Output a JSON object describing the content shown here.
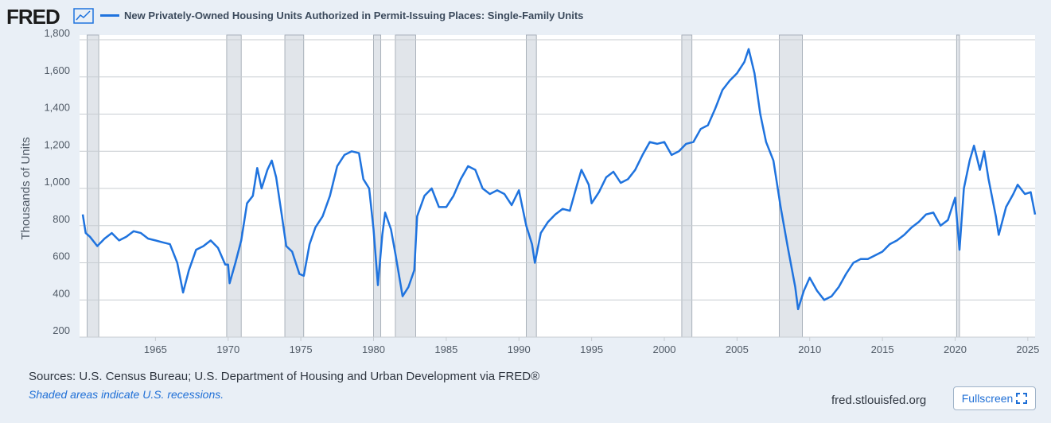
{
  "logo": "FRED",
  "source": "Sources: U.S. Census Bureau; U.S. Department of Housing and Urban Development via FRED®",
  "note": "Shaded areas indicate U.S. recessions.",
  "site": "fred.stlouisfed.org",
  "button": "Fullscreen",
  "chart_data": {
    "type": "line",
    "ylabel": "Thousands of Units",
    "xlim": [
      1960,
      2025.5
    ],
    "xticks": [
      1965,
      1970,
      1975,
      1980,
      1985,
      1990,
      1995,
      2000,
      2005,
      2010,
      2015,
      2020,
      2025
    ],
    "ylim": [
      200,
      1800
    ],
    "yticks": [
      200,
      400,
      600,
      800,
      {
        "value": 1000,
        "label": "1,000"
      },
      {
        "value": 1200,
        "label": "1,200"
      },
      {
        "value": 1400,
        "label": "1,400"
      },
      {
        "value": 1600,
        "label": "1,600"
      },
      {
        "value": 1800,
        "label": "1,800"
      }
    ],
    "grid": true,
    "recessions": [
      [
        1960.3,
        1961.1
      ],
      [
        1969.9,
        1970.9
      ],
      [
        1973.9,
        1975.2
      ],
      [
        1980.0,
        1980.5
      ],
      [
        1981.5,
        1982.9
      ],
      [
        1990.5,
        1991.2
      ],
      [
        2001.2,
        2001.9
      ],
      [
        2007.9,
        2009.5
      ],
      [
        2020.1,
        2020.3
      ]
    ],
    "x": [
      1960.0,
      1960.2,
      1960.5,
      1961.0,
      1961.5,
      1962.0,
      1962.5,
      1963.0,
      1963.5,
      1964.0,
      1964.5,
      1965.0,
      1965.5,
      1966.0,
      1966.5,
      1966.9,
      1967.3,
      1967.8,
      1968.3,
      1968.8,
      1969.3,
      1969.8,
      1970.0,
      1970.1,
      1970.5,
      1970.9,
      1971.3,
      1971.7,
      1972.0,
      1972.3,
      1972.7,
      1973.0,
      1973.3,
      1973.7,
      1974.0,
      1974.4,
      1974.9,
      1975.2,
      1975.6,
      1976.0,
      1976.5,
      1977.0,
      1977.5,
      1978.0,
      1978.5,
      1979.0,
      1979.3,
      1979.7,
      1980.0,
      1980.3,
      1980.6,
      1980.8,
      1981.2,
      1981.5,
      1982.0,
      1982.4,
      1982.8,
      1983.0,
      1983.5,
      1984.0,
      1984.5,
      1985.0,
      1985.5,
      1986.0,
      1986.5,
      1987.0,
      1987.5,
      1988.0,
      1988.5,
      1989.0,
      1989.5,
      1990.0,
      1990.5,
      1990.9,
      1991.1,
      1991.5,
      1992.0,
      1992.5,
      1993.0,
      1993.5,
      1994.0,
      1994.3,
      1994.8,
      1995.0,
      1995.5,
      1996.0,
      1996.5,
      1997.0,
      1997.5,
      1998.0,
      1998.5,
      1999.0,
      1999.5,
      2000.0,
      2000.5,
      2001.0,
      2001.5,
      2002.0,
      2002.5,
      2003.0,
      2003.5,
      2004.0,
      2004.5,
      2005.0,
      2005.5,
      2005.8,
      2006.2,
      2006.6,
      2007.0,
      2007.5,
      2008.0,
      2008.5,
      2009.0,
      2009.2,
      2009.6,
      2010.0,
      2010.5,
      2011.0,
      2011.5,
      2012.0,
      2012.5,
      2013.0,
      2013.5,
      2014.0,
      2014.5,
      2015.0,
      2015.5,
      2016.0,
      2016.5,
      2017.0,
      2017.5,
      2018.0,
      2018.5,
      2019.0,
      2019.5,
      2020.0,
      2020.3,
      2020.6,
      2021.0,
      2021.3,
      2021.7,
      2022.0,
      2022.3,
      2022.8,
      2023.0,
      2023.5,
      2024.0,
      2024.3,
      2024.8,
      2025.2,
      2025.5
    ],
    "series": [
      {
        "name": "New Privately-Owned Housing Units Authorized in Permit-Issuing Places: Single-Family Units",
        "color": "#1f73de",
        "values": [
          860,
          760,
          740,
          690,
          730,
          760,
          720,
          740,
          770,
          760,
          730,
          720,
          710,
          700,
          600,
          440,
          560,
          670,
          690,
          720,
          680,
          590,
          590,
          490,
          600,
          720,
          920,
          960,
          1110,
          1000,
          1100,
          1150,
          1060,
          850,
          690,
          660,
          540,
          530,
          700,
          790,
          850,
          960,
          1120,
          1180,
          1200,
          1190,
          1050,
          1000,
          780,
          480,
          750,
          870,
          780,
          650,
          420,
          470,
          560,
          850,
          960,
          1000,
          900,
          900,
          960,
          1050,
          1120,
          1100,
          1000,
          970,
          990,
          970,
          910,
          990,
          800,
          700,
          600,
          760,
          820,
          860,
          890,
          880,
          1020,
          1100,
          1020,
          920,
          980,
          1060,
          1090,
          1030,
          1050,
          1100,
          1180,
          1250,
          1240,
          1250,
          1180,
          1200,
          1240,
          1250,
          1320,
          1340,
          1430,
          1530,
          1580,
          1620,
          1680,
          1750,
          1620,
          1400,
          1250,
          1150,
          900,
          680,
          470,
          350,
          450,
          520,
          450,
          400,
          420,
          470,
          540,
          600,
          620,
          620,
          640,
          660,
          700,
          720,
          750,
          790,
          820,
          860,
          870,
          800,
          830,
          950,
          670,
          1000,
          1150,
          1230,
          1100,
          1200,
          1050,
          850,
          750,
          900,
          970,
          1020,
          970,
          980,
          860
        ]
      }
    ]
  }
}
